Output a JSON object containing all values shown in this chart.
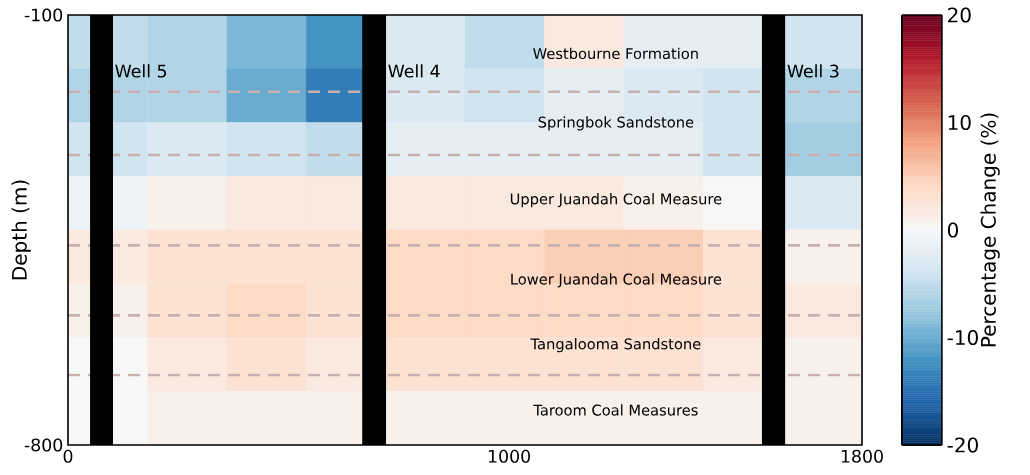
{
  "chart_data": {
    "type": "heatmap",
    "ylabel": "Depth (m)",
    "clabel": "Percentage Change (%)",
    "x": [
      90,
      270,
      450,
      630,
      810,
      990,
      1170,
      1350,
      1530,
      1710
    ],
    "y": [
      -143.75,
      -231.25,
      -318.75,
      -406.25,
      -493.75,
      -581.25,
      -668.75,
      -756.25
    ],
    "cells": [
      [
        -5,
        -6,
        -9,
        -12,
        -3,
        -5,
        2,
        -2,
        -2,
        -4
      ],
      [
        -6,
        -6,
        -10,
        -14,
        -3,
        -4,
        -2,
        -3,
        -4,
        -6
      ],
      [
        -4,
        -3,
        -4,
        -5,
        -2,
        -2,
        -2,
        -2,
        -4,
        -7
      ],
      [
        -1,
        1,
        2,
        2,
        2,
        2,
        2,
        1,
        0,
        -3
      ],
      [
        2,
        3,
        3,
        3,
        4,
        4,
        5,
        5,
        3,
        1
      ],
      [
        1,
        3,
        4,
        3,
        4,
        4,
        4,
        4,
        3,
        2
      ],
      [
        0,
        2,
        3,
        2,
        3,
        3,
        3,
        3,
        2,
        1
      ],
      [
        0,
        1,
        1,
        1,
        1,
        1,
        1,
        1,
        1,
        1
      ]
    ],
    "xlim": [
      0,
      1800
    ],
    "ylim": [
      -800,
      -100
    ],
    "xticks": [
      0,
      1000,
      1800
    ],
    "yticks": [
      -100,
      -800
    ],
    "clim": [
      -20,
      20
    ],
    "cticks": [
      -20,
      -10,
      0,
      10,
      20
    ],
    "bands": [
      {
        "axis": "x",
        "from": 50,
        "to": 102,
        "label": "Well 5",
        "color": "#000000"
      },
      {
        "axis": "x",
        "from": 667,
        "to": 721,
        "label": "Well 4",
        "color": "#000000"
      },
      {
        "axis": "x",
        "from": 1573,
        "to": 1626,
        "label": "Well 3",
        "color": "#000000"
      }
    ],
    "ref_lines": [
      {
        "axis": "y",
        "value": -225,
        "color": "#c8b0b0",
        "line_style": "dashed"
      },
      {
        "axis": "y",
        "value": -328,
        "color": "#c8b0b0",
        "line_style": "dashed"
      },
      {
        "axis": "y",
        "value": -475,
        "color": "#c8b0b0",
        "line_style": "dashed"
      },
      {
        "axis": "y",
        "value": -589,
        "color": "#c8b0b0",
        "line_style": "dashed"
      },
      {
        "axis": "y",
        "value": -686,
        "color": "#c8b0b0",
        "line_style": "dashed"
      }
    ],
    "annotations": [
      "Westbourne Formation",
      "Springbok Sandstone",
      "Upper Juandah Coal Measure",
      "Lower Juandah Coal Measure",
      "Tangalooma Sandstone",
      "Taroom Coal Measures"
    ]
  }
}
